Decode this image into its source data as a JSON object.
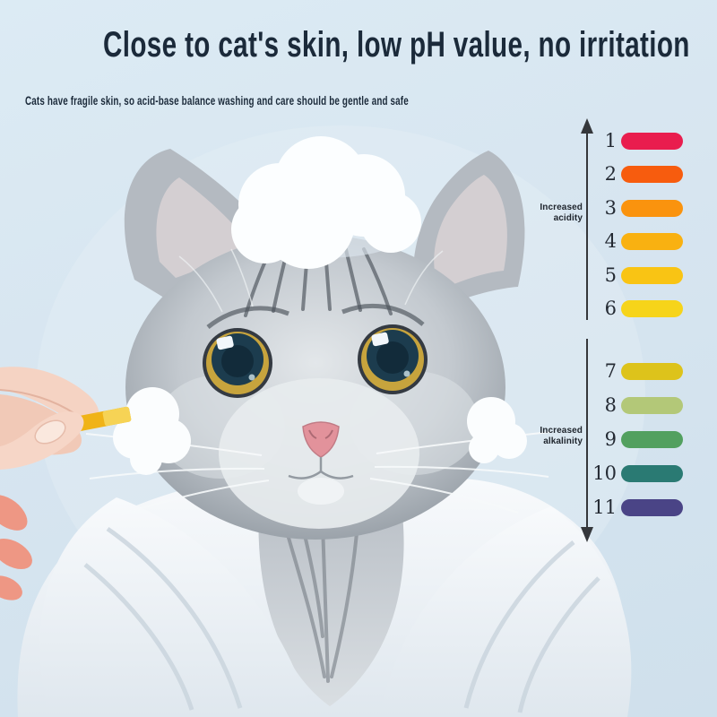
{
  "header": {
    "title": "Close to cat's skin, low pH value, no irritation",
    "subtitle": "Cats have fragile skin, so acid-base balance washing and care should be gentle and safe",
    "text_color": "#1b2a3a"
  },
  "ph_scale": {
    "acidity_label": [
      "Increased",
      "acidity"
    ],
    "alkalinity_label": [
      "Increased",
      "alkalinity"
    ],
    "arrow_color": "#35373b",
    "levels": [
      {
        "ph": "1",
        "color": "#e91d4e"
      },
      {
        "ph": "2",
        "color": "#f75c0e"
      },
      {
        "ph": "3",
        "color": "#fa930e"
      },
      {
        "ph": "4",
        "color": "#f9b111"
      },
      {
        "ph": "5",
        "color": "#f9c414"
      },
      {
        "ph": "6",
        "color": "#f6d41a"
      },
      {
        "ph": "7",
        "color": "#ddc31b"
      },
      {
        "ph": "8",
        "color": "#b3c878"
      },
      {
        "ph": "9",
        "color": "#52a05f"
      },
      {
        "ph": "10",
        "color": "#2a7a73"
      },
      {
        "ph": "11",
        "color": "#4a4486"
      }
    ]
  },
  "illustration": {
    "description": "Wet grey tabby cat wrapped in a white towel with shampoo foam on its head and cheeks; a hand holds a yellow pH test strip to the foam on its cheek",
    "background": "#d7e5f0"
  }
}
